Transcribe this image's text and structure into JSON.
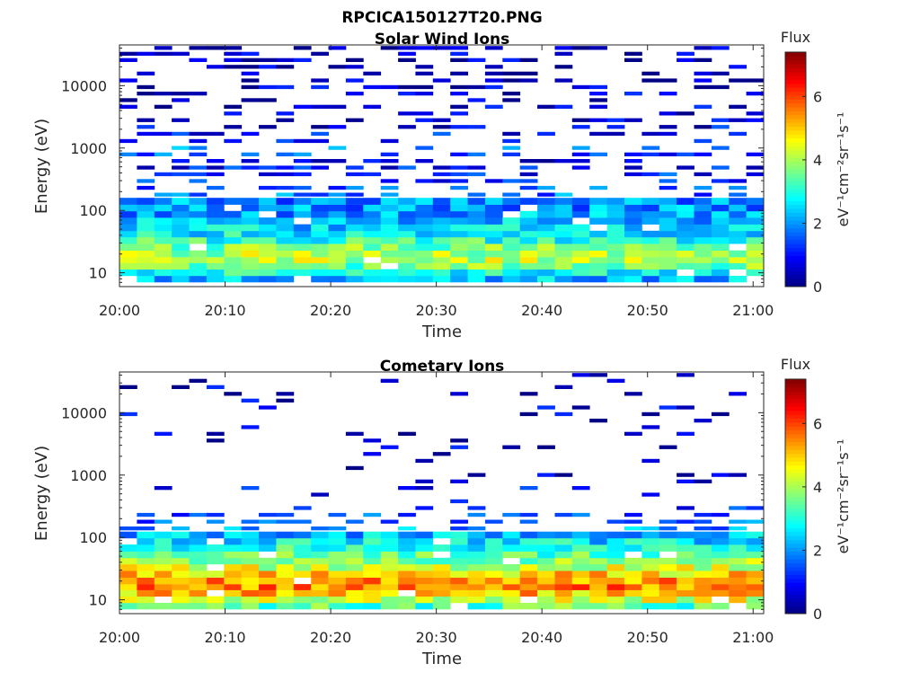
{
  "figure_title": "RPCICA150127T20.PNG",
  "chart_data": [
    {
      "type": "heatmap",
      "title": "Solar Wind Ions",
      "xlabel": "Time",
      "ylabel": "Energy (eV)",
      "x_ticks": [
        "20:00",
        "20:10",
        "20:20",
        "20:30",
        "20:40",
        "20:50",
        "21:00"
      ],
      "y_ticks": [
        "10",
        "100",
        "1000",
        "10000"
      ],
      "y_scale": "log",
      "ylim": [
        6,
        45000
      ],
      "colorbar": {
        "title": "Flux",
        "unit": "eV⁻¹cm⁻²sr⁻¹s⁻¹",
        "ticks": [
          "0",
          "2",
          "4",
          "6"
        ],
        "range": [
          0,
          7.4
        ]
      },
      "grid": false,
      "energy_levels_eV": [
        8,
        10,
        13,
        16,
        20,
        26,
        33,
        42,
        53,
        68,
        87,
        110,
        140,
        180,
        230,
        300,
        380,
        490,
        620,
        800,
        1000,
        1300,
        1700,
        2200,
        2800,
        3600,
        4600,
        5900,
        7500,
        9600,
        12000,
        16000,
        20000,
        26000,
        33000,
        40000
      ],
      "time_bins": [
        "20:00",
        "20:02",
        "20:03",
        "20:05",
        "20:07",
        "20:08",
        "20:10",
        "20:12",
        "20:13",
        "20:15",
        "20:17",
        "20:18",
        "20:20",
        "20:22",
        "20:23",
        "20:25",
        "20:27",
        "20:28",
        "20:30",
        "20:32",
        "20:33",
        "20:35",
        "20:37",
        "20:38",
        "20:40",
        "20:42",
        "20:43",
        "20:45",
        "20:47",
        "20:48",
        "20:50",
        "20:52",
        "20:53",
        "20:55",
        "20:57",
        "20:58",
        "21:00"
      ],
      "flux_profile": [
        {
          "energy_eV": 8,
          "flux": 2.3
        },
        {
          "energy_eV": 10,
          "flux": 3.0
        },
        {
          "energy_eV": 13,
          "flux": 3.6
        },
        {
          "energy_eV": 16,
          "flux": 4.1
        },
        {
          "energy_eV": 20,
          "flux": 4.0
        },
        {
          "energy_eV": 26,
          "flux": 3.6
        },
        {
          "energy_eV": 33,
          "flux": 3.1
        },
        {
          "energy_eV": 42,
          "flux": 2.7
        },
        {
          "energy_eV": 53,
          "flux": 2.5
        },
        {
          "energy_eV": 68,
          "flux": 2.3
        },
        {
          "energy_eV": 87,
          "flux": 2.1
        },
        {
          "energy_eV": 110,
          "flux": 2.0
        },
        {
          "energy_eV": 140,
          "flux": 1.9
        },
        {
          "energy_eV": 180,
          "flux": 1.7
        },
        {
          "energy_eV": 230,
          "flux": 1.5
        },
        {
          "energy_eV": 300,
          "flux": 1.3
        },
        {
          "energy_eV": 380,
          "flux": 1.1
        },
        {
          "energy_eV": 490,
          "flux": 1.0
        },
        {
          "energy_eV": 620,
          "flux": 0.9
        },
        {
          "energy_eV": 800,
          "flux": 1.5
        },
        {
          "energy_eV": 1000,
          "flux": 1.8
        },
        {
          "energy_eV": 1300,
          "flux": 1.2
        },
        {
          "energy_eV": 1700,
          "flux": 1.0
        },
        {
          "energy_eV": 2200,
          "flux": 0.8
        },
        {
          "energy_eV": 2800,
          "flux": 0.7
        },
        {
          "energy_eV": 3600,
          "flux": 0.6
        },
        {
          "energy_eV": 4600,
          "flux": 0.6
        },
        {
          "energy_eV": 5900,
          "flux": 0.5
        },
        {
          "energy_eV": 7500,
          "flux": 0.5
        },
        {
          "energy_eV": 9600,
          "flux": 0.5
        },
        {
          "energy_eV": 12000,
          "flux": 0.4
        },
        {
          "energy_eV": 16000,
          "flux": 0.4
        },
        {
          "energy_eV": 20000,
          "flux": 0.4
        },
        {
          "energy_eV": 26000,
          "flux": 0.4
        },
        {
          "energy_eV": 33000,
          "flux": 0.4
        },
        {
          "energy_eV": 40000,
          "flux": 0.3
        }
      ]
    },
    {
      "type": "heatmap",
      "title": "Cometary Ions",
      "xlabel": "Time",
      "ylabel": "Energy (eV)",
      "x_ticks": [
        "20:00",
        "20:10",
        "20:20",
        "20:30",
        "20:40",
        "20:50",
        "21:00"
      ],
      "y_ticks": [
        "10",
        "100",
        "1000",
        "10000"
      ],
      "y_scale": "log",
      "ylim": [
        6,
        45000
      ],
      "colorbar": {
        "title": "Flux",
        "unit": "eV⁻¹cm⁻²sr⁻¹s⁻¹",
        "ticks": [
          "0",
          "2",
          "4",
          "6"
        ],
        "range": [
          0,
          7.4
        ]
      },
      "grid": false,
      "energy_levels_eV": [
        8,
        10,
        13,
        16,
        20,
        26,
        33,
        42,
        53,
        68,
        87,
        110,
        140,
        180,
        230,
        300,
        380,
        490,
        620,
        800,
        1000,
        1300,
        1700,
        2200,
        2800,
        3600,
        4600,
        5900,
        7500,
        9600,
        12000,
        16000,
        20000,
        26000,
        33000,
        40000
      ],
      "time_bins": [
        "20:00",
        "20:02",
        "20:03",
        "20:05",
        "20:07",
        "20:08",
        "20:10",
        "20:12",
        "20:13",
        "20:15",
        "20:17",
        "20:18",
        "20:20",
        "20:22",
        "20:23",
        "20:25",
        "20:27",
        "20:28",
        "20:30",
        "20:32",
        "20:33",
        "20:35",
        "20:37",
        "20:38",
        "20:40",
        "20:42",
        "20:43",
        "20:45",
        "20:47",
        "20:48",
        "20:50",
        "20:52",
        "20:53",
        "20:55",
        "20:57",
        "20:58",
        "21:00"
      ],
      "flux_profile": [
        {
          "energy_eV": 8,
          "flux": 3.4
        },
        {
          "energy_eV": 10,
          "flux": 4.4
        },
        {
          "energy_eV": 13,
          "flux": 5.1
        },
        {
          "energy_eV": 16,
          "flux": 5.5
        },
        {
          "energy_eV": 20,
          "flux": 5.4
        },
        {
          "energy_eV": 26,
          "flux": 4.9
        },
        {
          "energy_eV": 33,
          "flux": 4.3
        },
        {
          "energy_eV": 42,
          "flux": 3.8
        },
        {
          "energy_eV": 53,
          "flux": 3.4
        },
        {
          "energy_eV": 68,
          "flux": 3.0
        },
        {
          "energy_eV": 87,
          "flux": 2.6
        },
        {
          "energy_eV": 110,
          "flux": 2.3
        },
        {
          "energy_eV": 140,
          "flux": 2.0
        },
        {
          "energy_eV": 180,
          "flux": 1.7
        },
        {
          "energy_eV": 230,
          "flux": 1.4
        },
        {
          "energy_eV": 300,
          "flux": 1.2
        },
        {
          "energy_eV": 380,
          "flux": 1.0
        },
        {
          "energy_eV": 490,
          "flux": 0.9
        },
        {
          "energy_eV": 620,
          "flux": 0.8
        },
        {
          "energy_eV": 800,
          "flux": 0.7
        },
        {
          "energy_eV": 1000,
          "flux": 0.7
        },
        {
          "energy_eV": 1300,
          "flux": 0.6
        },
        {
          "energy_eV": 1700,
          "flux": 0.9
        },
        {
          "energy_eV": 2200,
          "flux": 0.6
        },
        {
          "energy_eV": 2800,
          "flux": 0.5
        },
        {
          "energy_eV": 3600,
          "flux": 0.5
        },
        {
          "energy_eV": 4600,
          "flux": 0.5
        },
        {
          "energy_eV": 5900,
          "flux": 0.5
        },
        {
          "energy_eV": 7500,
          "flux": 0.5
        },
        {
          "energy_eV": 9600,
          "flux": 0.5
        },
        {
          "energy_eV": 12000,
          "flux": 0.5
        },
        {
          "energy_eV": 16000,
          "flux": 0.5
        },
        {
          "energy_eV": 20000,
          "flux": 0.5
        },
        {
          "energy_eV": 26000,
          "flux": 0.5
        },
        {
          "energy_eV": 33000,
          "flux": 0.5
        },
        {
          "energy_eV": 40000,
          "flux": 0.5
        }
      ]
    }
  ]
}
